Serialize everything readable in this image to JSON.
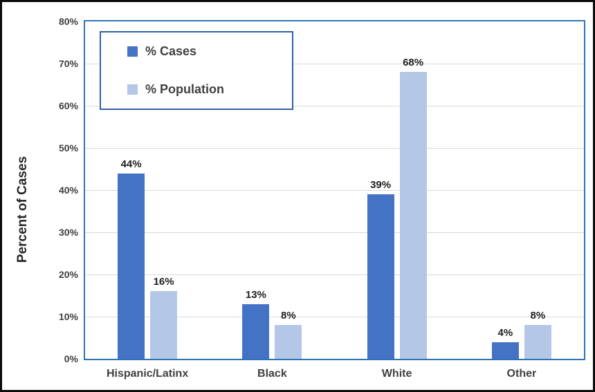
{
  "chart_data": {
    "type": "bar",
    "title": "",
    "categories": [
      "Hispanic/Latinx",
      "Black",
      "White",
      "Other"
    ],
    "series": [
      {
        "name": "% Cases",
        "color": "#4472C4",
        "values": [
          44,
          13,
          39,
          4
        ],
        "labels": [
          "44%",
          "13%",
          "39%",
          "4%"
        ]
      },
      {
        "name": "% Population",
        "color": "#B4C7E7",
        "values": [
          16,
          8,
          68,
          8
        ],
        "labels": [
          "16%",
          "8%",
          "68%",
          "8%"
        ]
      }
    ],
    "xlabel": "",
    "ylabel": "Percent of Cases",
    "ylim": [
      0,
      80
    ],
    "yticks": [
      0,
      10,
      20,
      30,
      40,
      50,
      60,
      70,
      80
    ],
    "ytick_labels": [
      "0%",
      "10%",
      "20%",
      "30%",
      "40%",
      "50%",
      "60%",
      "70%",
      "80%"
    ],
    "grid": true,
    "legend": {
      "position": "top-left",
      "entries": [
        "% Cases",
        "% Population"
      ]
    }
  },
  "colors": {
    "series_cases": "#4472C4",
    "series_population": "#B4C7E7",
    "plot_border": "#2E74B5",
    "legend_border": "#2E5FA8",
    "gridline": "#D9D9D9",
    "axis_text": "#3F3F3F",
    "data_label_text": "#1F1F1F",
    "background": "#FFFFFF",
    "frame": "#000000"
  }
}
